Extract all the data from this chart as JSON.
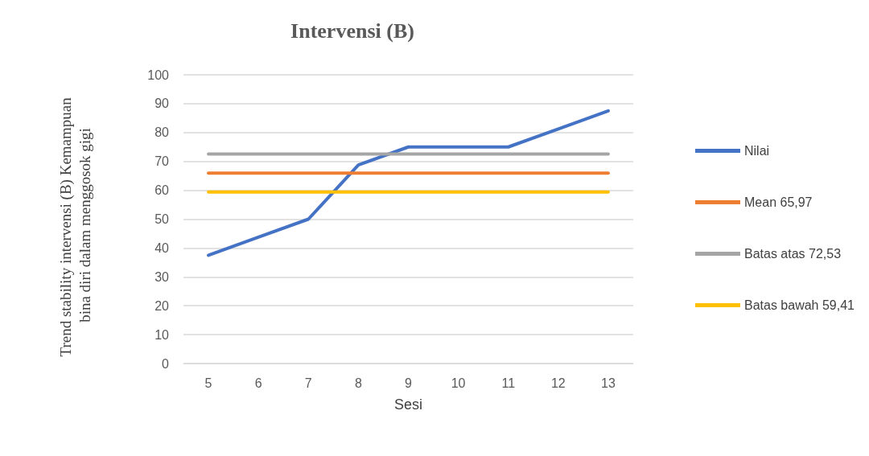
{
  "chart_data": {
    "type": "line",
    "title": "Intervensi (B)",
    "xlabel": "Sesi",
    "ylabel": "Trend stability intervensi (B) Kemampuan bina diri dalam menggosok gigi",
    "categories": [
      "5",
      "6",
      "7",
      "8",
      "9",
      "10",
      "11",
      "12",
      "13"
    ],
    "series": [
      {
        "name": "Nilai",
        "color": "#4472c4",
        "values": [
          37.5,
          43.75,
          50,
          68.75,
          75,
          75,
          75,
          81.25,
          87.5
        ]
      },
      {
        "name": "Mean 65,97",
        "color": "#ed7d31",
        "values": [
          65.97,
          65.97,
          65.97,
          65.97,
          65.97,
          65.97,
          65.97,
          65.97,
          65.97
        ]
      },
      {
        "name": "Batas atas 72,53",
        "color": "#a5a5a5",
        "values": [
          72.53,
          72.53,
          72.53,
          72.53,
          72.53,
          72.53,
          72.53,
          72.53,
          72.53
        ]
      },
      {
        "name": "Batas bawah 59,41",
        "color": "#ffc000",
        "values": [
          59.41,
          59.41,
          59.41,
          59.41,
          59.41,
          59.41,
          59.41,
          59.41,
          59.41
        ]
      }
    ],
    "ylim": [
      0,
      100
    ],
    "yticks": [
      0,
      10,
      20,
      30,
      40,
      50,
      60,
      70,
      80,
      90,
      100
    ],
    "grid": "y",
    "legend": "right",
    "marker": "none",
    "line_style": "solid"
  }
}
